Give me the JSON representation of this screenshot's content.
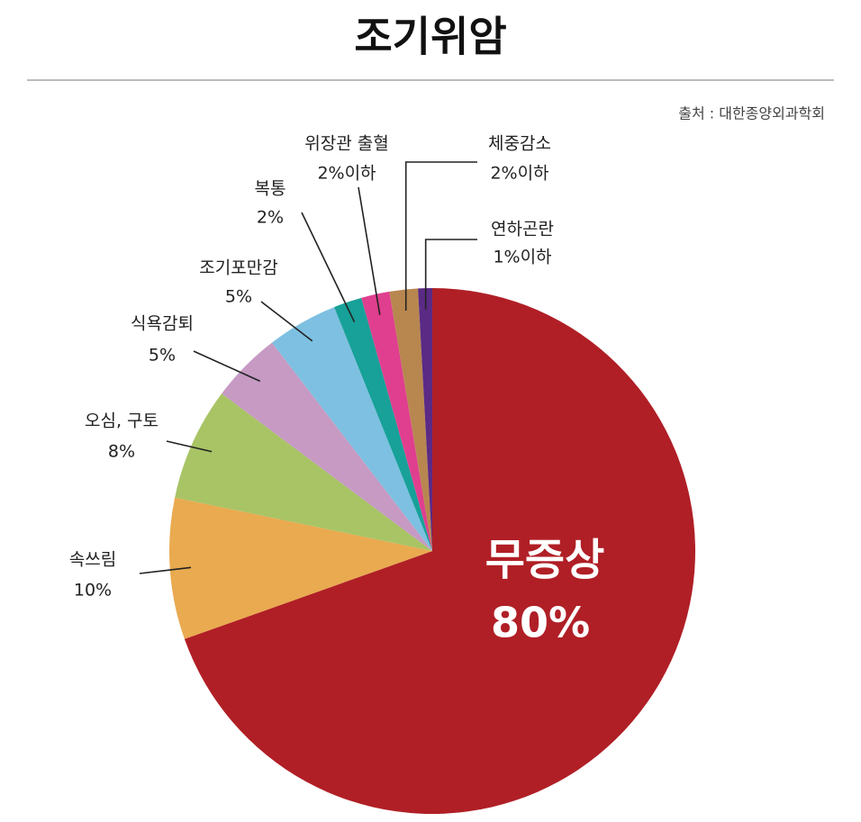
{
  "chart_data": {
    "type": "pie",
    "title": "조기위암",
    "source": "출처 : 대한종양외과학회",
    "categories": [
      "무증상",
      "속쓰림",
      "오심, 구토",
      "식욕감퇴",
      "조기포만감",
      "복통",
      "위장관 출혈",
      "체중감소",
      "연하곤란"
    ],
    "values": [
      80,
      10,
      8,
      5,
      5,
      2,
      2,
      2,
      1
    ],
    "value_labels": [
      "80%",
      "10%",
      "8%",
      "5%",
      "5%",
      "2%",
      "2%이하",
      "2%이하",
      "1%이하"
    ],
    "colors": [
      "#b01f26",
      "#e9aa50",
      "#a8c465",
      "#c69ac3",
      "#7ec0e1",
      "#17a198",
      "#df3f8e",
      "#b8874f",
      "#5a2a85"
    ]
  }
}
